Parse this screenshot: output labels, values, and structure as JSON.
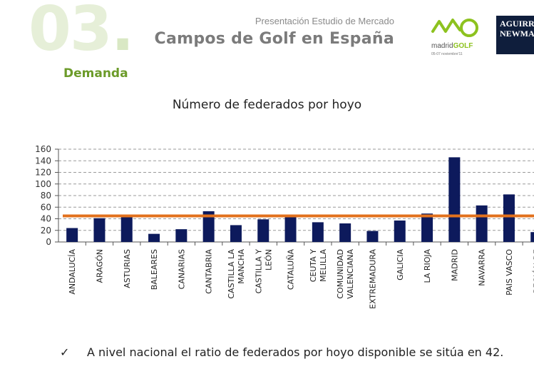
{
  "header": {
    "section_number": "03",
    "section_dot": ".",
    "section_name": "Demanda",
    "presentation_subtitle": "Presentación Estudio de Mercado",
    "presentation_title": "Campos de Golf en España"
  },
  "logos": {
    "madrid_golf_line1": "madrid",
    "madrid_golf_line2": "GOLF",
    "madrid_golf_dates": "05-07 noviembre'11",
    "aguirre_line1": "AGUIRRE",
    "aguirre_line2": "NEWMAN"
  },
  "chart_data": {
    "type": "bar",
    "title": "Número de federados por hoyo",
    "xlabel": "",
    "ylabel": "",
    "ylim": [
      0,
      160
    ],
    "yticks": [
      0,
      20,
      40,
      60,
      80,
      100,
      120,
      140,
      160
    ],
    "grid": true,
    "categories": [
      "ANDALUCÍA",
      "ARAGÓN",
      "ASTURIAS",
      "BALEARES",
      "CANARIAS",
      "CANTABRIA",
      "CASTILLA LA MANCHA",
      "CASTILLA Y LEÓN",
      "CATALUÑA",
      "CEUTA Y MELILLA",
      "COMUNIDAD VALENCIANA",
      "EXTREMADURA",
      "GALICIA",
      "LA RIOJA",
      "MADRID",
      "NAVARRA",
      "PAIS VASCO",
      "REGIÓN DE"
    ],
    "values": [
      24,
      41,
      44,
      14,
      22,
      53,
      29,
      39,
      43,
      34,
      32,
      19,
      37,
      49,
      146,
      63,
      82,
      17
    ],
    "reference_line": {
      "value": 45
    },
    "colors": {
      "bar": "#0d1a5c",
      "reference": "#e2711d",
      "grid": "#9a9a9a"
    }
  },
  "note": {
    "check": "✓",
    "text": "A nivel nacional el ratio de federados por hoyo disponible se sitúa en 42."
  }
}
